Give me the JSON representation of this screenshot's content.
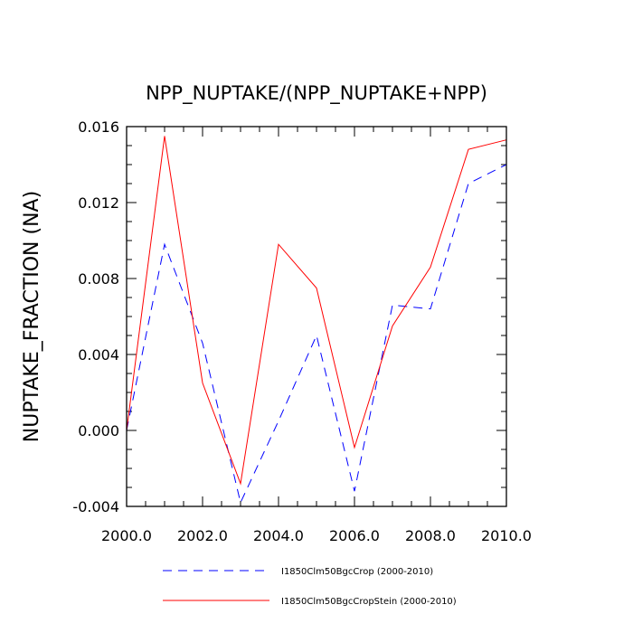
{
  "chart_data": {
    "type": "line",
    "title": "NPP_NUPTAKE/(NPP_NUPTAKE+NPP)",
    "ylabel": "NUPTAKE_FRACTION  (NA)",
    "xlabel": "",
    "xlim": [
      2000,
      2010
    ],
    "ylim": [
      -0.004,
      0.016
    ],
    "x_ticks": [
      2000,
      2002,
      2004,
      2006,
      2008,
      2010
    ],
    "x_tick_labels": [
      "2000.0",
      "2002.0",
      "2004.0",
      "2006.0",
      "2008.0",
      "2010.0"
    ],
    "y_ticks": [
      -0.004,
      0.0,
      0.004,
      0.008,
      0.012,
      0.016
    ],
    "y_tick_labels": [
      "-0.004",
      "0.000",
      "0.004",
      "0.008",
      "0.012",
      "0.016"
    ],
    "grid": false,
    "legend_position": "bottom",
    "x": [
      2000,
      2001,
      2002,
      2003,
      2004,
      2005,
      2006,
      2007,
      2008,
      2009,
      2010
    ],
    "series": [
      {
        "name": "I1850Clm50BgcCrop (2000-2010)",
        "color": "#0000ff",
        "style": "dashed",
        "values": [
          0.0,
          0.0098,
          0.0046,
          -0.0038,
          0.0005,
          0.005,
          -0.0032,
          0.0066,
          0.0064,
          0.013,
          0.014
        ]
      },
      {
        "name": "I1850Clm50BgcCropStein (2000-2010)",
        "color": "#ff0000",
        "style": "solid",
        "values": [
          0.0,
          0.0155,
          0.0025,
          -0.0028,
          0.0098,
          0.0075,
          -0.0009,
          0.0055,
          0.0086,
          0.0148,
          0.0153
        ]
      }
    ]
  }
}
